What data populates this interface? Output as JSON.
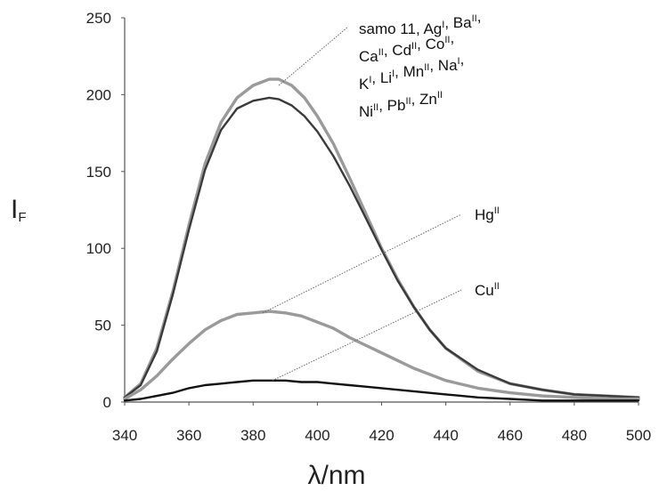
{
  "chart_data": {
    "type": "line",
    "xlabel": "λ/nm",
    "ylabel": "I",
    "ylabel_sub": "F",
    "xlim": [
      340,
      500
    ],
    "ylim": [
      0,
      250
    ],
    "xticks": [
      "340",
      "360",
      "380",
      "400",
      "420",
      "440",
      "460",
      "480",
      "500"
    ],
    "yticks": [
      "0",
      "50",
      "100",
      "150",
      "200",
      "250"
    ],
    "grid": false,
    "legend": "none",
    "colors": {
      "gray": "#9a9a9a",
      "dark": "#3a3a3a",
      "black": "#111111",
      "axis": "#555555"
    },
    "series": [
      {
        "color": "gray",
        "x": [
          340,
          345,
          350,
          355,
          360,
          365,
          370,
          375,
          380,
          385,
          388,
          392,
          396,
          400,
          405,
          410,
          415,
          420,
          425,
          430,
          435,
          440,
          450,
          460,
          470,
          480,
          490,
          500
        ],
        "y": [
          3,
          12,
          35,
          72,
          115,
          155,
          182,
          198,
          206,
          210,
          210,
          206,
          198,
          186,
          168,
          146,
          123,
          100,
          80,
          62,
          47,
          35,
          20,
          12,
          8,
          5,
          4,
          3
        ]
      },
      {
        "color": "dark",
        "x": [
          340,
          345,
          350,
          355,
          360,
          365,
          370,
          375,
          380,
          385,
          388,
          392,
          396,
          400,
          405,
          410,
          415,
          420,
          425,
          430,
          435,
          440,
          450,
          460,
          470,
          480,
          490,
          500
        ],
        "y": [
          3,
          11,
          33,
          70,
          112,
          151,
          177,
          191,
          196,
          198,
          197,
          193,
          186,
          176,
          160,
          141,
          120,
          99,
          79,
          62,
          47,
          35,
          21,
          12,
          8,
          5,
          4,
          3
        ]
      },
      {
        "color": "gray",
        "x": [
          340,
          345,
          350,
          355,
          360,
          365,
          370,
          375,
          380,
          385,
          390,
          395,
          400,
          405,
          410,
          415,
          420,
          425,
          430,
          435,
          440,
          450,
          460,
          470,
          480,
          490,
          500
        ],
        "y": [
          2,
          8,
          17,
          28,
          38,
          47,
          53,
          57,
          58,
          59,
          58,
          56,
          52,
          48,
          42,
          37,
          32,
          27,
          22,
          18,
          14,
          9,
          6,
          4,
          3,
          2,
          2
        ]
      },
      {
        "color": "black",
        "x": [
          340,
          345,
          350,
          355,
          360,
          365,
          370,
          375,
          380,
          385,
          390,
          395,
          400,
          405,
          410,
          415,
          420,
          430,
          440,
          450,
          460,
          470,
          480,
          490,
          500
        ],
        "y": [
          1,
          2,
          4,
          6,
          9,
          11,
          12,
          13,
          14,
          14,
          14,
          13,
          13,
          12,
          11,
          10,
          9,
          7,
          5,
          3,
          2,
          1,
          1,
          1,
          1
        ]
      }
    ],
    "annotations": [
      {
        "lines": [
          "samo 11, Ag^I, Ba^II,",
          "Ca^II, Cd^II, Co^II,",
          "K^I, Li^I, Mn^II, Na^I,",
          "Ni^II, Pb^II, Zn^II"
        ],
        "points_to": [
          388,
          206
        ]
      },
      {
        "lines": [
          "Hg^II"
        ],
        "points_to": [
          383,
          58
        ]
      },
      {
        "lines": [
          "Cu^II"
        ],
        "points_to": [
          386,
          14
        ]
      }
    ]
  }
}
